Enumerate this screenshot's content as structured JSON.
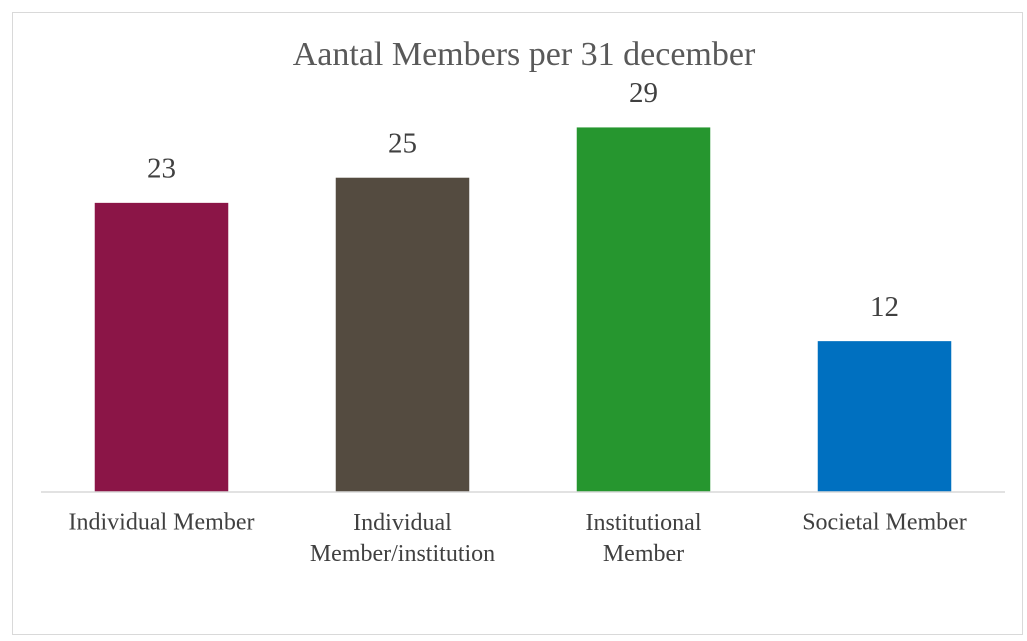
{
  "chart_data": {
    "type": "bar",
    "title": "Aantal Members per 31 december",
    "categories": [
      "Individual Member",
      "Individual\nMember/institution",
      "Institutional\nMember",
      "Societal Member"
    ],
    "values": [
      23,
      25,
      29,
      12
    ],
    "colors": [
      "#8b1547",
      "#544b40",
      "#26962f",
      "#0070c0"
    ],
    "ylim": [
      0,
      35
    ]
  }
}
